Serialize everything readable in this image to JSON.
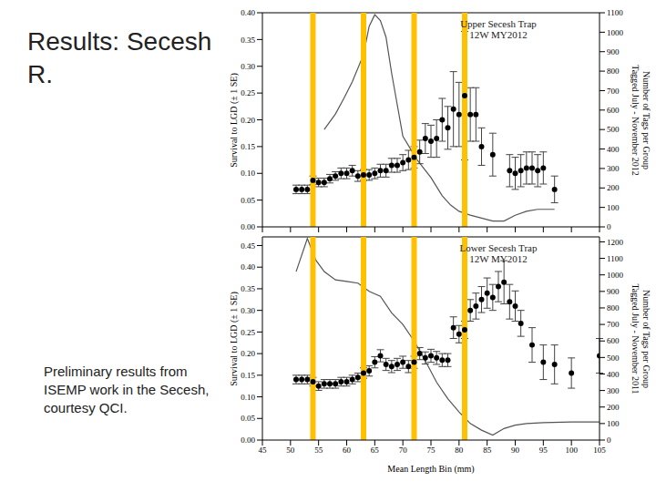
{
  "slide_title": "Results: Secesh R.",
  "caption": "Preliminary results from ISEMP work in the Secesh, courtesy QCI.",
  "chart_data": [
    {
      "type": "scatter",
      "title": "Upper Secesh Trap",
      "subtitle": "12W MY2012",
      "ylabel": "Survival to LGD (± 1 SE)",
      "y2label": [
        "Number of Tags per Group",
        "Tagged July - November 2012"
      ],
      "tick_labels": "y",
      "xlim": [
        45,
        105
      ],
      "xticks": [
        45,
        50,
        55,
        60,
        65,
        70,
        75,
        80,
        85,
        90,
        95,
        100,
        105
      ],
      "ylim": [
        0,
        0.4
      ],
      "yticks": [
        {
          "value": 0,
          "label": "0.00"
        },
        {
          "value": 0.05,
          "label": "0.05"
        },
        {
          "value": 0.1,
          "label": "0.10"
        },
        {
          "value": 0.15,
          "label": "0.15"
        },
        {
          "value": 0.2,
          "label": "0.20"
        },
        {
          "value": 0.25,
          "label": "0.25"
        },
        {
          "value": 0.3,
          "label": "0.30"
        },
        {
          "value": 0.35,
          "label": "0.35"
        },
        {
          "value": 0.4,
          "label": "0.40"
        }
      ],
      "y2lim": [
        0,
        1100
      ],
      "y2ticks": [
        0,
        100,
        200,
        300,
        400,
        500,
        600,
        700,
        800,
        900,
        1000,
        1100
      ],
      "grid": false,
      "reference_lines": {
        "values": [
          54,
          63,
          72,
          81
        ],
        "color": "#ffc000"
      },
      "series": [
        {
          "type": "scatter",
          "color": "#000000",
          "marker": "circle",
          "x": [
            51,
            52,
            53,
            54,
            55,
            56,
            57,
            58,
            59,
            60,
            61,
            62,
            63,
            64,
            65,
            66,
            67,
            68,
            69,
            70,
            71,
            72,
            73,
            74,
            75,
            76,
            77,
            78,
            79,
            80,
            81,
            82,
            83,
            84,
            86,
            89,
            90,
            91,
            92,
            93,
            94,
            95,
            97
          ],
          "values": [
            0.07,
            0.07,
            0.07,
            0.087,
            0.083,
            0.083,
            0.09,
            0.095,
            0.1,
            0.1,
            0.105,
            0.095,
            0.097,
            0.097,
            0.1,
            0.105,
            0.105,
            0.115,
            0.115,
            0.12,
            0.125,
            0.13,
            0.14,
            0.165,
            0.16,
            0.165,
            0.2,
            0.185,
            0.22,
            0.21,
            0.245,
            0.21,
            0.21,
            0.15,
            0.135,
            0.105,
            0.1,
            0.105,
            0.11,
            0.11,
            0.105,
            0.11,
            0.07
          ],
          "errors": [
            0.008,
            0.008,
            0.008,
            0.008,
            0.008,
            0.008,
            0.008,
            0.008,
            0.01,
            0.01,
            0.01,
            0.01,
            0.01,
            0.01,
            0.01,
            0.012,
            0.012,
            0.013,
            0.013,
            0.015,
            0.018,
            0.02,
            0.022,
            0.028,
            0.03,
            0.035,
            0.04,
            0.04,
            0.07,
            0.06,
            0.12,
            0.05,
            0.05,
            0.035,
            0.04,
            0.03,
            0.03,
            0.03,
            0.03,
            0.03,
            0.03,
            0.03,
            0.025
          ]
        },
        {
          "type": "line",
          "axis": "y2",
          "color": "#555555",
          "marker": "none",
          "line_style": "solid",
          "x": [
            56,
            58,
            59.5,
            61,
            63,
            64,
            65,
            66,
            67,
            68,
            70,
            72.5,
            75,
            77,
            78.5,
            80,
            82,
            84,
            86,
            88,
            90,
            92,
            94,
            96,
            97
          ],
          "values": [
            500,
            580,
            660,
            745,
            885,
            1030,
            1090,
            1060,
            975,
            790,
            465,
            346,
            253,
            160,
            112,
            80,
            60,
            45,
            30,
            30,
            60,
            80,
            90,
            90,
            90
          ]
        }
      ]
    },
    {
      "type": "scatter",
      "title": "Lower Secesh Trap",
      "subtitle": "12W MY2012",
      "xlabel": "Mean Length Bin (mm)",
      "ylabel": "Survival to LGD (± 1 SE)",
      "y2label": [
        "Number of Tags per Group",
        "Tagged July - November 2011"
      ],
      "xlim": [
        45,
        105
      ],
      "xticks": [
        45,
        50,
        55,
        60,
        65,
        70,
        75,
        80,
        85,
        90,
        95,
        100,
        105
      ],
      "ylim": [
        0,
        0.47
      ],
      "yticks": [
        {
          "value": 0,
          "label": "0.00"
        },
        {
          "value": 0.05,
          "label": "0.05"
        },
        {
          "value": 0.1,
          "label": "0.10"
        },
        {
          "value": 0.15,
          "label": "0.15"
        },
        {
          "value": 0.2,
          "label": "0.20"
        },
        {
          "value": 0.25,
          "label": "0.25"
        },
        {
          "value": 0.3,
          "label": "0.30"
        },
        {
          "value": 0.35,
          "label": "0.35"
        },
        {
          "value": 0.4,
          "label": "0.40"
        },
        {
          "value": 0.45,
          "label": "0.45"
        }
      ],
      "y2lim": [
        0,
        1230
      ],
      "y2ticks": [
        0,
        100,
        200,
        300,
        400,
        500,
        600,
        700,
        800,
        900,
        1000,
        1100,
        1200
      ],
      "grid": false,
      "reference_lines": {
        "values": [
          54,
          63,
          72,
          81
        ],
        "color": "#ffc000"
      },
      "series": [
        {
          "type": "scatter",
          "color": "#000000",
          "marker": "circle",
          "x": [
            51,
            52,
            53,
            54,
            55,
            56,
            57,
            58,
            59,
            60,
            61,
            62,
            63,
            64,
            65,
            66,
            67,
            68,
            69,
            70,
            71,
            72,
            73,
            74,
            75,
            76,
            77,
            78,
            79,
            80,
            81,
            82,
            83,
            84,
            85,
            86,
            87,
            88,
            89,
            90,
            91,
            93,
            95,
            97,
            100,
            105
          ],
          "values": [
            0.14,
            0.14,
            0.14,
            0.135,
            0.125,
            0.13,
            0.13,
            0.13,
            0.135,
            0.135,
            0.14,
            0.145,
            0.155,
            0.16,
            0.18,
            0.195,
            0.175,
            0.17,
            0.175,
            0.18,
            0.17,
            0.18,
            0.2,
            0.19,
            0.195,
            0.19,
            0.185,
            0.185,
            0.26,
            0.245,
            0.255,
            0.3,
            0.31,
            0.325,
            0.34,
            0.33,
            0.355,
            0.365,
            0.32,
            0.31,
            0.27,
            0.22,
            0.18,
            0.175,
            0.155,
            0.195
          ],
          "errors": [
            0.01,
            0.01,
            0.01,
            0.01,
            0.01,
            0.01,
            0.01,
            0.01,
            0.01,
            0.01,
            0.01,
            0.01,
            0.012,
            0.012,
            0.013,
            0.014,
            0.014,
            0.014,
            0.014,
            0.014,
            0.014,
            0.014,
            0.014,
            0.014,
            0.015,
            0.015,
            0.015,
            0.015,
            0.025,
            0.02,
            0.02,
            0.025,
            0.03,
            0.03,
            0.035,
            0.03,
            0.035,
            0.05,
            0.04,
            0.035,
            0.03,
            0.04,
            0.04,
            0.045,
            0.035,
            0.04
          ]
        },
        {
          "type": "line",
          "axis": "y2",
          "color": "#555555",
          "marker": "none",
          "line_style": "solid",
          "x": [
            51,
            53,
            54.5,
            56,
            58,
            60,
            62,
            64,
            66,
            68,
            70,
            72,
            74,
            76,
            78,
            80,
            82,
            84,
            86,
            88,
            90,
            92,
            95,
            100,
            105
          ],
          "values": [
            1020,
            1220,
            1090,
            1020,
            970,
            960,
            950,
            900,
            870,
            770,
            700,
            600,
            480,
            350,
            250,
            170,
            100,
            60,
            30,
            70,
            90,
            100,
            105,
            110,
            110
          ]
        }
      ]
    }
  ]
}
